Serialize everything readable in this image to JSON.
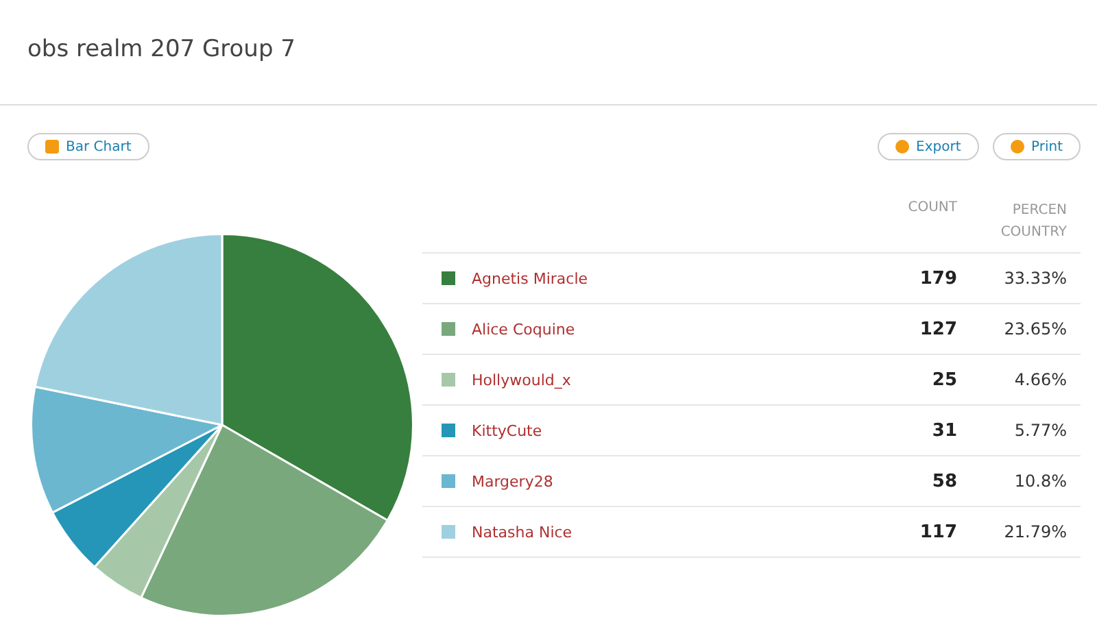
{
  "chart_data": {
    "type": "pie",
    "title": "obs realm 207 Group 7",
    "categories": [
      "Agnetis Miracle",
      "Alice Coquine",
      "Hollywould_x",
      "KittyCute",
      "Margery28",
      "Natasha Nice"
    ],
    "values": [
      33.33,
      23.65,
      4.66,
      5.77,
      10.8,
      21.79
    ],
    "colors": [
      "#377f3e",
      "#79a87c",
      "#a6c8a8",
      "#2596b8",
      "#6bb7d0",
      "#9fd0e0"
    ],
    "value_labels": [
      "33.33%",
      "23.65%",
      "4.66%",
      "5.77%",
      "10.8%",
      "21.79%"
    ],
    "legend": "right",
    "annotations": [
      "Bar Chart",
      "Export",
      "Print",
      "COUNT",
      "PERCEN",
      "COUNTRY",
      {
        "text": "179",
        "x": "Agnetis Miracle"
      },
      {
        "text": "127",
        "x": "Alice Coquine"
      },
      {
        "text": "25",
        "x": "Hollywould_x"
      },
      {
        "text": "31",
        "x": "KittyCute"
      },
      {
        "text": "58",
        "x": "Margery28"
      },
      {
        "text": "117",
        "x": "Natasha Nice"
      }
    ]
  }
}
